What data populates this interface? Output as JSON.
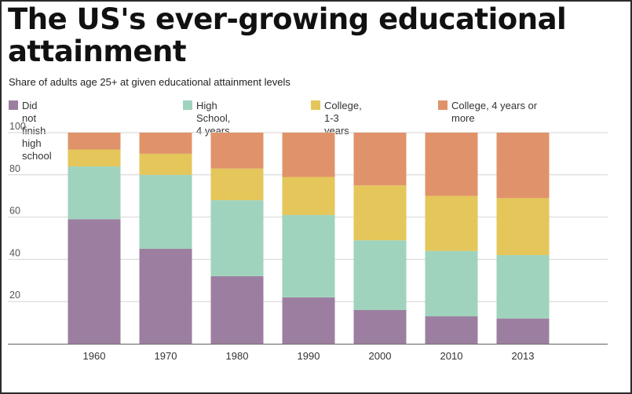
{
  "title": "The US's ever-growing educational attainment",
  "subtitle": "Share of adults age 25+ at given educational attainment levels",
  "chart_data": {
    "type": "bar",
    "stacked": true,
    "categories": [
      "1960",
      "1970",
      "1980",
      "1990",
      "2000",
      "2010",
      "2013"
    ],
    "series": [
      {
        "name": "Did not finish high school",
        "color": "#9c7fa0",
        "values": [
          59,
          45,
          32,
          22,
          16,
          13,
          12
        ]
      },
      {
        "name": "High School, 4 years",
        "color": "#9fd3bd",
        "values": [
          25,
          35,
          36,
          39,
          33,
          31,
          30
        ]
      },
      {
        "name": "College, 1-3 years",
        "color": "#e5c65a",
        "values": [
          8,
          10,
          15,
          18,
          26,
          26,
          27
        ]
      },
      {
        "name": "College, 4 years or more",
        "color": "#e0936a",
        "values": [
          8,
          10,
          17,
          21,
          25,
          30,
          31
        ]
      }
    ],
    "yticks": [
      20,
      40,
      60,
      80,
      100
    ],
    "ylim": [
      0,
      100
    ],
    "xlabel": "",
    "ylabel": "",
    "legend_position": "top"
  }
}
